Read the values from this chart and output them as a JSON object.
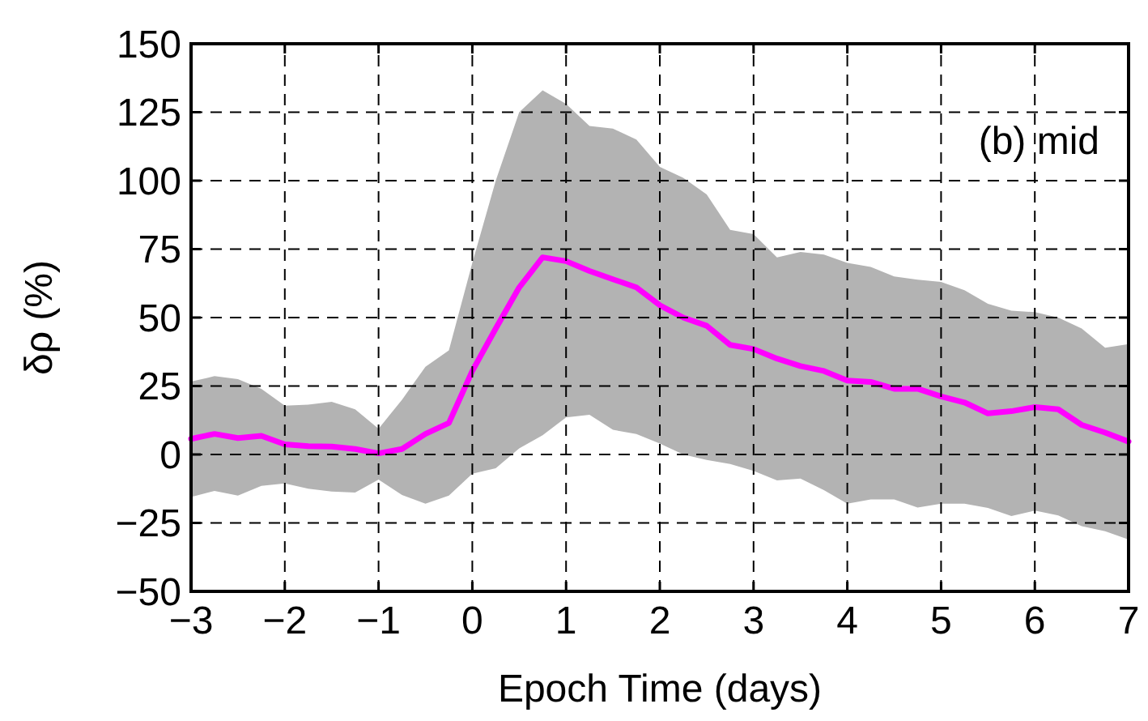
{
  "chart_data": {
    "type": "line",
    "xlabel": "Epoch Time (days)",
    "ylabel": "δρ (%)",
    "annotations": [
      "(b) mid"
    ],
    "xlim": [
      -3,
      7
    ],
    "xticks": [
      {
        "value": -3,
        "label": "−3"
      },
      {
        "value": -2,
        "label": "−2"
      },
      {
        "value": -1,
        "label": "−1"
      },
      0,
      1,
      2,
      3,
      4,
      5,
      6,
      7
    ],
    "ylim": [
      -50,
      150
    ],
    "yticks": [
      {
        "value": -50,
        "label": "−50"
      },
      {
        "value": -25,
        "label": "−25"
      },
      0,
      25,
      50,
      75,
      100,
      125,
      150
    ],
    "grid": true,
    "marker": "none",
    "line_style": "solid",
    "x": [
      -3,
      -2.75,
      -2.5,
      -2.25,
      -2,
      -1.75,
      -1.5,
      -1.25,
      -1,
      -0.75,
      -0.5,
      -0.25,
      0,
      0.25,
      0.5,
      0.75,
      1,
      1.25,
      1.5,
      1.75,
      2,
      2.25,
      2.5,
      2.75,
      3,
      3.25,
      3.5,
      3.75,
      4,
      4.25,
      4.5,
      4.75,
      5,
      5.25,
      5.5,
      5.75,
      6,
      6.25,
      6.5,
      6.75,
      7
    ],
    "series": [
      {
        "color": "#ff00ff",
        "values": [
          5.7,
          7.5,
          6,
          6.8,
          3.7,
          3,
          2.9,
          2,
          0.4,
          2,
          7.5,
          11.5,
          30.5,
          46,
          61,
          72,
          70.6,
          67,
          64,
          61,
          54.5,
          50,
          47,
          40,
          38.5,
          35,
          32.3,
          30.5,
          27,
          26.5,
          24,
          24,
          21.2,
          19,
          15,
          15.8,
          17.3,
          16.5,
          10.8,
          8,
          4.7
        ],
        "upper": [
          26.6,
          28.6,
          27.5,
          24,
          17.8,
          18.2,
          19.2,
          16.5,
          9.4,
          20,
          32,
          38,
          70,
          100,
          125,
          133,
          128,
          120,
          119,
          115,
          105,
          101,
          95,
          82,
          80.5,
          72,
          74,
          73,
          70,
          68.5,
          65,
          63.8,
          63,
          60,
          55,
          52.5,
          52,
          50,
          46,
          39,
          40.3
        ],
        "lower": [
          -15.5,
          -13.3,
          -15,
          -11.5,
          -10.6,
          -12.5,
          -13.5,
          -13.9,
          -9.2,
          -14.8,
          -18,
          -15,
          -7,
          -5,
          2.2,
          7,
          13.5,
          14.5,
          9,
          7.5,
          4,
          0,
          -2,
          -3.5,
          -6,
          -9.5,
          -8.8,
          -13,
          -18,
          -16.4,
          -16.4,
          -19.4,
          -18,
          -18,
          -19.5,
          -22.5,
          -20.5,
          -22.3,
          -26.2,
          -28,
          -31.1
        ]
      }
    ]
  }
}
